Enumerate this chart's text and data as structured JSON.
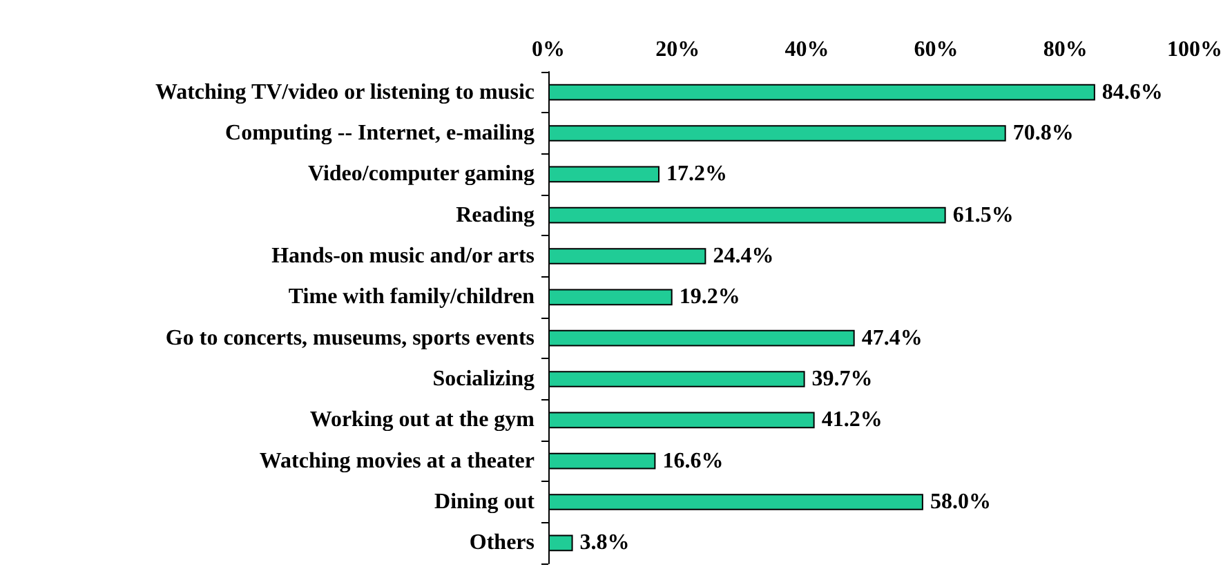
{
  "chart_data": {
    "type": "bar",
    "orientation": "horizontal",
    "categories": [
      "Watching TV/video or listening to music",
      "Computing -- Internet, e-mailing",
      "Video/computer gaming",
      "Reading",
      "Hands-on music and/or arts",
      "Time with family/children",
      "Go to concerts, museums, sports events",
      "Socializing",
      "Working out at the gym",
      "Watching movies at a theater",
      "Dining out",
      "Others"
    ],
    "values": [
      84.6,
      70.8,
      17.2,
      61.5,
      24.4,
      19.2,
      47.4,
      39.7,
      41.2,
      16.6,
      58.0,
      3.8
    ],
    "value_labels": [
      "84.6%",
      "70.8%",
      "17.2%",
      "61.5%",
      "24.4%",
      "19.2%",
      "47.4%",
      "39.7%",
      "41.2%",
      "16.6%",
      "58.0%",
      "3.8%"
    ],
    "color": "#20cc96",
    "xlim": [
      0,
      100
    ],
    "xticks": [
      {
        "value": 0,
        "label": "0%"
      },
      {
        "value": 20,
        "label": "20%"
      },
      {
        "value": 40,
        "label": "40%"
      },
      {
        "value": 60,
        "label": "60%"
      },
      {
        "value": 80,
        "label": "80%"
      },
      {
        "value": 100,
        "label": "100%"
      }
    ],
    "grid": false
  }
}
